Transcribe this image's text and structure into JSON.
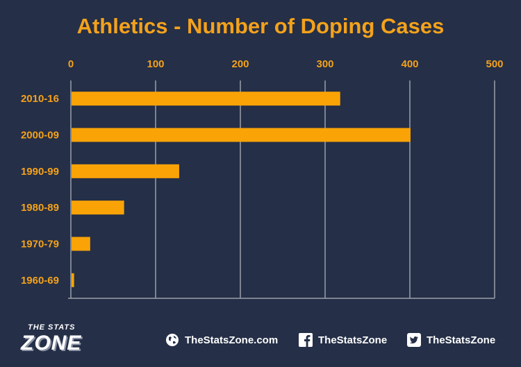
{
  "chart_data": {
    "type": "bar",
    "orientation": "horizontal",
    "title": "Athletics - Number of Doping Cases",
    "categories": [
      "2010-16",
      "2000-09",
      "1990-99",
      "1980-89",
      "1970-79",
      "1960-69"
    ],
    "values": [
      317,
      400,
      127,
      62,
      22,
      3
    ],
    "xlim": [
      0,
      500
    ],
    "x_ticks": [
      0,
      100,
      200,
      300,
      400,
      500
    ],
    "x_axis_position": "top",
    "grid": true,
    "colors": {
      "bar": "#f9a307",
      "text": "#f4a21b",
      "background": "#252f47",
      "grid": "#9aa0ab"
    }
  },
  "footer": {
    "logo_top": "THE STATS",
    "logo_bottom": "ZONE",
    "website": "TheStatsZone.com",
    "facebook": "TheStatsZone",
    "twitter": "TheStatsZone",
    "icons": [
      "globe-icon",
      "facebook-icon",
      "twitter-icon"
    ]
  }
}
